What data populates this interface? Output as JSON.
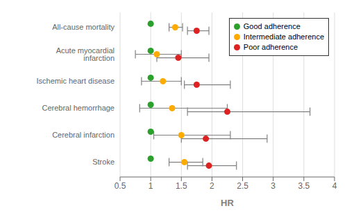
{
  "chart_data": {
    "type": "forest",
    "categories": [
      "All-cause mortality",
      "Acute myocardial infarction",
      "Ischemic heart disease",
      "Cerebral hemorrhage",
      "Cerebral infarction",
      "Stroke"
    ],
    "series": [
      {
        "name": "Good adherence",
        "color": "#2ca02c",
        "values": [
          1.0,
          1.0,
          1.0,
          1.0,
          1.0,
          1.0
        ]
      },
      {
        "name": "Intermediate adherence",
        "color": "#ffaa00",
        "values": [
          1.4,
          1.1,
          1.2,
          1.35,
          1.5,
          1.55
        ],
        "lower": [
          1.3,
          0.75,
          0.85,
          0.82,
          1.05,
          1.3
        ],
        "upper": [
          1.52,
          1.5,
          1.5,
          2.25,
          2.3,
          1.85
        ]
      },
      {
        "name": "Poor adherence",
        "color": "#dd2222",
        "values": [
          1.75,
          1.45,
          1.75,
          2.25,
          1.9,
          1.95
        ],
        "lower": [
          1.6,
          1.1,
          1.55,
          1.6,
          1.5,
          1.6
        ],
        "upper": [
          1.95,
          1.95,
          2.3,
          3.6,
          2.9,
          2.4
        ]
      }
    ],
    "xlabel": "HR",
    "xlim": [
      0.5,
      4.0
    ],
    "xticks": [
      0.5,
      1,
      1.5,
      2,
      2.5,
      3,
      3.5,
      4
    ],
    "grid": true,
    "legend": "upper right"
  }
}
